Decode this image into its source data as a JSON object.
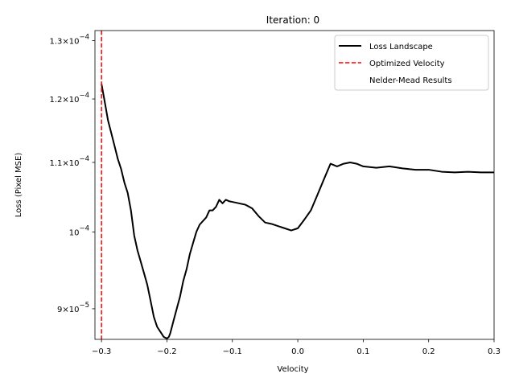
{
  "chart_data": {
    "type": "line",
    "title": "Iteration: 0",
    "xlabel": "Velocity",
    "ylabel": "Loss (Pixel MSE)",
    "xlim": [
      -0.31,
      0.3
    ],
    "ylim": [
      8.63e-05,
      0.0001318
    ],
    "yscale": "log",
    "grid": false,
    "legend_position": "top-right",
    "x_ticks": [
      {
        "value": -0.3,
        "label": "−0.3"
      },
      {
        "value": -0.2,
        "label": "−0.2"
      },
      {
        "value": -0.1,
        "label": "−0.1"
      },
      {
        "value": 0.0,
        "label": "0.0"
      },
      {
        "value": 0.1,
        "label": "0.1"
      },
      {
        "value": 0.2,
        "label": "0.2"
      },
      {
        "value": 0.3,
        "label": "0.3"
      }
    ],
    "y_ticks": [
      {
        "value": 0.00013,
        "mantissa": "1.3×10",
        "exp": "−4"
      },
      {
        "value": 0.00012,
        "mantissa": "1.2×10",
        "exp": "−4"
      },
      {
        "value": 0.00011,
        "mantissa": "1.1×10",
        "exp": "−4"
      },
      {
        "value": 0.0001,
        "mantissa": "10",
        "exp": "−4"
      },
      {
        "value": 9e-05,
        "mantissa": "9×10",
        "exp": "−5"
      }
    ],
    "series": [
      {
        "name": "Loss Landscape",
        "color": "#000000",
        "style": "solid",
        "x": [
          -0.3,
          -0.295,
          -0.29,
          -0.285,
          -0.28,
          -0.275,
          -0.27,
          -0.265,
          -0.26,
          -0.255,
          -0.25,
          -0.245,
          -0.24,
          -0.235,
          -0.23,
          -0.225,
          -0.22,
          -0.215,
          -0.21,
          -0.205,
          -0.2,
          -0.197,
          -0.195,
          -0.19,
          -0.185,
          -0.18,
          -0.175,
          -0.17,
          -0.165,
          -0.16,
          -0.155,
          -0.15,
          -0.145,
          -0.14,
          -0.135,
          -0.13,
          -0.125,
          -0.12,
          -0.115,
          -0.11,
          -0.105,
          -0.1,
          -0.09,
          -0.08,
          -0.07,
          -0.06,
          -0.05,
          -0.04,
          -0.03,
          -0.02,
          -0.01,
          0.0,
          0.01,
          0.02,
          0.03,
          0.04,
          0.05,
          0.06,
          0.07,
          0.08,
          0.09,
          0.1,
          0.12,
          0.14,
          0.16,
          0.18,
          0.2,
          0.22,
          0.24,
          0.26,
          0.28,
          0.3
        ],
        "y": [
          0.0001225,
          0.0001195,
          0.0001165,
          0.0001145,
          0.0001125,
          0.0001105,
          0.000109,
          0.000107,
          0.0001055,
          0.000103,
          9.95e-05,
          9.75e-05,
          9.6e-05,
          9.45e-05,
          9.3e-05,
          9.1e-05,
          8.9e-05,
          8.78e-05,
          8.72e-05,
          8.66e-05,
          8.64e-05,
          8.66e-05,
          8.7e-05,
          8.85e-05,
          9e-05,
          9.15e-05,
          9.35e-05,
          9.5e-05,
          9.7e-05,
          9.85e-05,
          0.0001,
          0.000101,
          0.0001015,
          0.000102,
          0.000103,
          0.000103,
          0.0001035,
          0.0001045,
          0.000104,
          0.0001045,
          0.0001043,
          0.0001042,
          0.000104,
          0.0001038,
          0.0001033,
          0.0001022,
          0.0001013,
          0.0001011,
          0.0001008,
          0.0001005,
          0.0001002,
          0.0001005,
          0.0001017,
          0.000103,
          0.0001052,
          0.0001075,
          0.0001098,
          0.0001094,
          0.0001098,
          0.00011,
          0.0001098,
          0.0001094,
          0.0001092,
          0.0001094,
          0.0001091,
          0.0001089,
          0.0001089,
          0.0001086,
          0.0001085,
          0.0001086,
          0.0001085,
          0.0001085
        ]
      },
      {
        "name": "Optimized Velocity",
        "color": "#ff0000",
        "style": "dashed",
        "vertical_line_x": -0.3
      },
      {
        "name": "Nelder-Mead Results",
        "color": "#ffffff",
        "style": "none",
        "points": []
      }
    ]
  }
}
